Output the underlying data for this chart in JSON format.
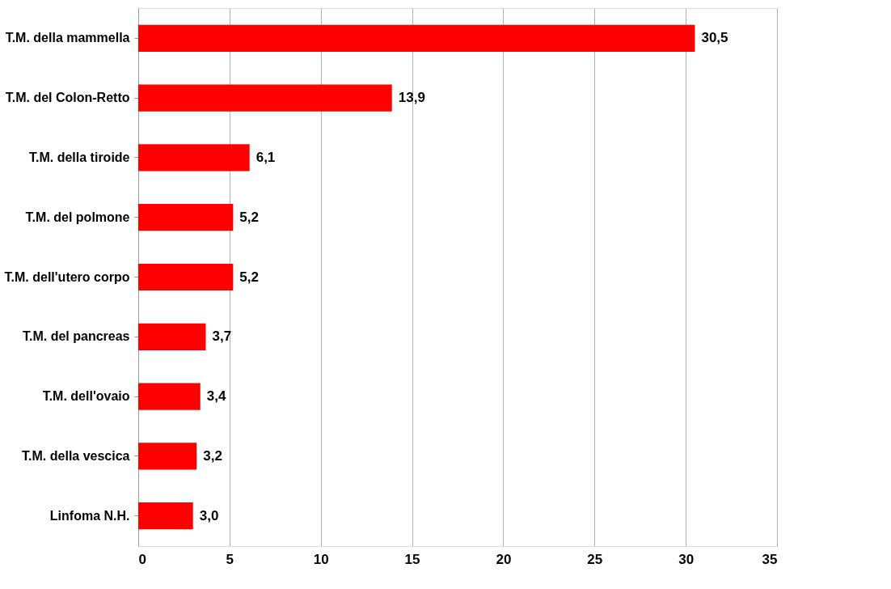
{
  "chart_data": {
    "type": "bar",
    "orientation": "horizontal",
    "categories": [
      "T.M. della mammella",
      "T.M. del Colon-Retto",
      "T.M. della tiroide",
      "T.M. del polmone",
      "T.M. dell'utero corpo",
      "T.M. del pancreas",
      "T.M. dell'ovaio",
      "T.M. della vescica",
      "Linfoma N.H."
    ],
    "values": [
      30.5,
      13.9,
      6.1,
      5.2,
      5.2,
      3.7,
      3.4,
      3.2,
      3.0
    ],
    "value_labels": [
      "30,5",
      "13,9",
      "6,1",
      "5,2",
      "5,2",
      "3,7",
      "3,4",
      "3,2",
      "3,0"
    ],
    "color": "#ff0000",
    "xlim": [
      0,
      35
    ],
    "xticks": [
      0,
      5,
      10,
      15,
      20,
      25,
      30,
      35
    ],
    "grid": "x"
  }
}
